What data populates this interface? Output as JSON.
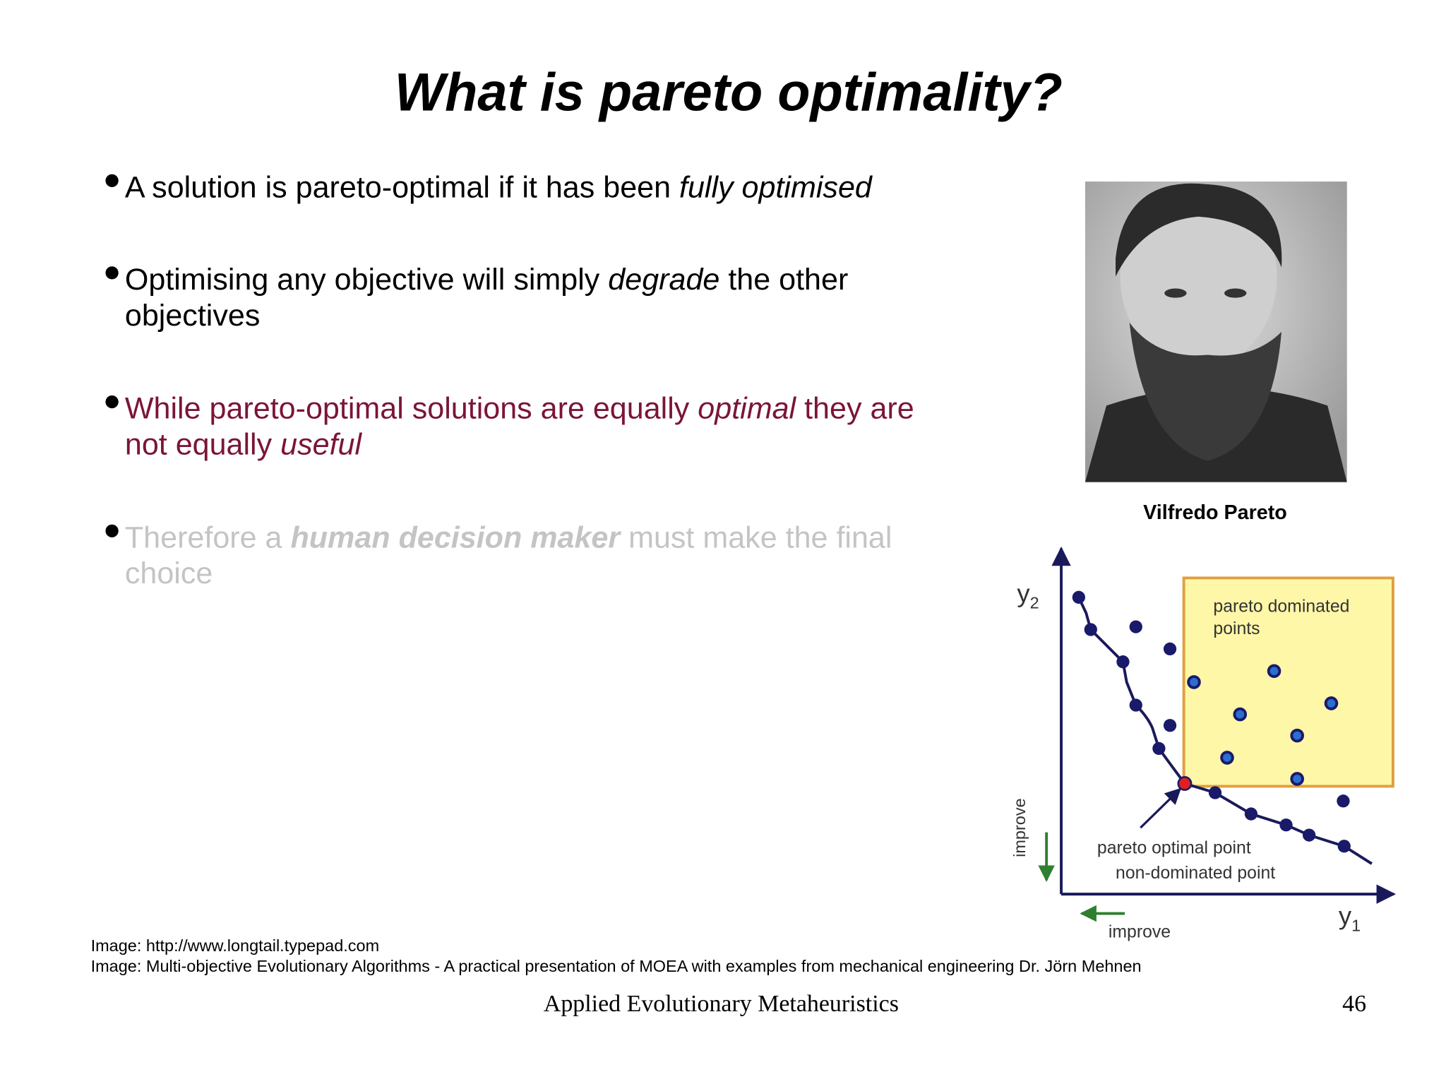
{
  "title": "What is pareto optimality?",
  "bullets": [
    {
      "parts": [
        "A solution is pareto-optimal if it has been ",
        "fully optimised"
      ]
    },
    {
      "parts": [
        "Optimising any objective will simply ",
        "degrade",
        " the other",
        "objectives"
      ]
    },
    {
      "parts": [
        "While pareto-optimal solutions are equally ",
        "optimal",
        " they are",
        "not equally ",
        "useful"
      ]
    },
    {
      "parts": [
        "Therefore a ",
        "human decision maker",
        " must make the final",
        "choice"
      ]
    }
  ],
  "photo_caption": "Vilfredo Pareto",
  "diagram": {
    "y_label": {
      "base": "y",
      "sub": "2"
    },
    "x_label": {
      "base": "y",
      "sub": "1"
    },
    "box_label": [
      "pareto dominated",
      "points"
    ],
    "optimal_label": [
      "pareto optimal point",
      "non-dominated point"
    ],
    "y_improve": "improve",
    "x_improve": "improve"
  },
  "credits": [
    "Image: http://www.longtail.typepad.com",
    "Image: Multi-objective Evolutionary Algorithms - A practical presentation of MOEA with examples from mechanical engineering Dr. Jörn Mehnen"
  ],
  "footer": {
    "text": "Applied Evolutionary Metaheuristics",
    "page": "46"
  }
}
